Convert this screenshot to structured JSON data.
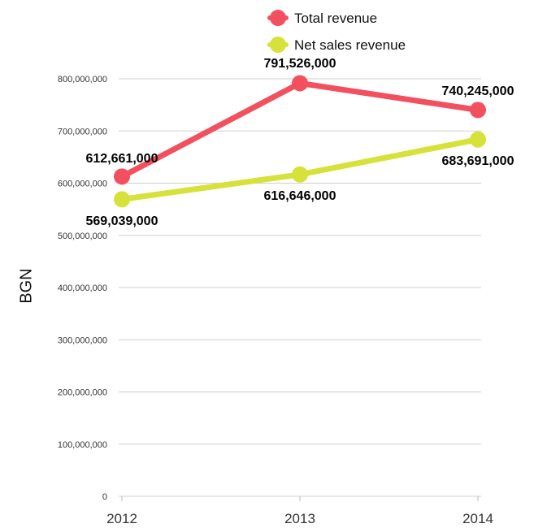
{
  "chart_data": {
    "type": "line",
    "title": "",
    "xlabel": "",
    "ylabel": "BGN",
    "categories": [
      "2012",
      "2013",
      "2014"
    ],
    "ylim": [
      0,
      800000000
    ],
    "yticks": [
      0,
      100000000,
      200000000,
      300000000,
      400000000,
      500000000,
      600000000,
      700000000,
      800000000
    ],
    "ytick_labels": [
      "0",
      "100,000,000",
      "200,000,000",
      "300,000,000",
      "400,000,000",
      "500,000,000",
      "600,000,000",
      "700,000,000",
      "800,000,000"
    ],
    "grid": true,
    "legend_position": "top-center",
    "series": [
      {
        "name": "Total revenue",
        "color": "#f2505f",
        "values": [
          612661000,
          791526000,
          740245000
        ],
        "labels": [
          "612,661,000",
          "791,526,000",
          "740,245,000"
        ]
      },
      {
        "name": "Net sales revenue",
        "color": "#d6e23a",
        "values": [
          569039000,
          616646000,
          683691000
        ],
        "labels": [
          "569,039,000",
          "616,646,000",
          "683,691,000"
        ]
      }
    ]
  }
}
